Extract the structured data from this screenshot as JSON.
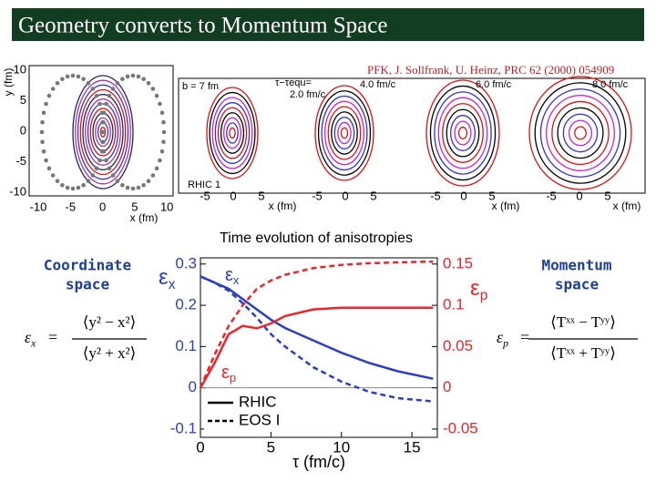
{
  "header": {
    "title": "Geometry converts to Momentum Space"
  },
  "citation": "PFK, J. Sollfrank, U. Heinz, PRC 62 (2000) 054909",
  "left_label": [
    "Coordinate",
    "space"
  ],
  "right_label": [
    "Momentum",
    "space"
  ],
  "formula_x": {
    "symbol": "ε",
    "sub": "x",
    "eq": "=",
    "numerator": "⟨y² − x²⟩",
    "denominator": "⟨y² + x²⟩"
  },
  "formula_p": {
    "symbol": "ε",
    "sub": "p",
    "eq": "=",
    "numerator": "⟨Tˣˣ − Tʸʸ⟩",
    "denominator": "⟨Tˣˣ + Tʸʸ⟩"
  },
  "contours": {
    "ylabel": "y (fm)",
    "xlabel": "x (fm)",
    "yticks": [
      10,
      5,
      0,
      -5,
      -10
    ],
    "xticks": [
      -10,
      -5,
      0,
      5,
      10
    ],
    "labels": [
      "b = 7 fm",
      "τ−τequ=",
      "2.0 fm/c",
      "4.0 fm/c",
      "6.0 fm/c",
      "8.0 fm/c",
      "RHIC 1"
    ],
    "panel_ticks": [
      {
        "ticks": [
          -5,
          0,
          5
        ],
        "xlabel": "x (fm)"
      },
      {
        "ticks": [
          -5,
          0,
          5
        ]
      },
      {
        "ticks": [
          -5,
          0,
          5
        ],
        "xlabel": "x (fm)"
      },
      {
        "ticks": [
          -5,
          0,
          5
        ],
        "xlabel": "x (fm)"
      }
    ]
  },
  "chart_data": {
    "type": "line",
    "title": "Time evolution of anisotropies",
    "xlabel": "τ (fm/c)",
    "ylabel": {
      "symbol": "ε",
      "sub": "x"
    },
    "y2label": {
      "symbol": "ε",
      "sub": "p"
    },
    "annotations": [
      {
        "symbol": "ε",
        "sub": "x",
        "color": "#2b3fc0"
      },
      {
        "symbol": "ε",
        "sub": "p",
        "color": "#e8262b"
      }
    ],
    "x": [
      0,
      1,
      2,
      3,
      4,
      5,
      6,
      8,
      10,
      12,
      14,
      16.5
    ],
    "xlim": [
      0,
      16.8
    ],
    "xticks": [
      0,
      5,
      10,
      15
    ],
    "ylim": [
      -0.12,
      0.315
    ],
    "yticks": [
      -0.1,
      0,
      0.1,
      0.2,
      0.3
    ],
    "y2lim": [
      -0.06,
      0.1575
    ],
    "y2ticks": [
      -0.05,
      0,
      0.05,
      0.1,
      0.15
    ],
    "legend": [
      {
        "label": "RHIC",
        "dash": false
      },
      {
        "label": "EOS I",
        "dash": true
      }
    ],
    "series": [
      {
        "color": "#2b3fc0",
        "dash": false,
        "values": [
          0.27,
          0.255,
          0.24,
          0.215,
          0.19,
          0.165,
          0.145,
          0.115,
          0.085,
          0.06,
          0.04,
          0.022
        ]
      },
      {
        "color": "#2b3fc0",
        "dash": true,
        "values": [
          0.27,
          0.255,
          0.235,
          0.205,
          0.17,
          0.13,
          0.1,
          0.05,
          0.015,
          -0.01,
          -0.025,
          -0.033
        ]
      },
      {
        "color": "#e8262b",
        "dash": false,
        "axis": "y2",
        "values": [
          0,
          0.03,
          0.065,
          0.075,
          0.072,
          0.078,
          0.087,
          0.095,
          0.097,
          0.097,
          0.097,
          0.097
        ]
      },
      {
        "color": "#e8262b",
        "dash": true,
        "axis": "y2",
        "values": [
          0,
          0.04,
          0.075,
          0.1,
          0.12,
          0.13,
          0.137,
          0.145,
          0.149,
          0.151,
          0.152,
          0.153
        ]
      }
    ]
  }
}
